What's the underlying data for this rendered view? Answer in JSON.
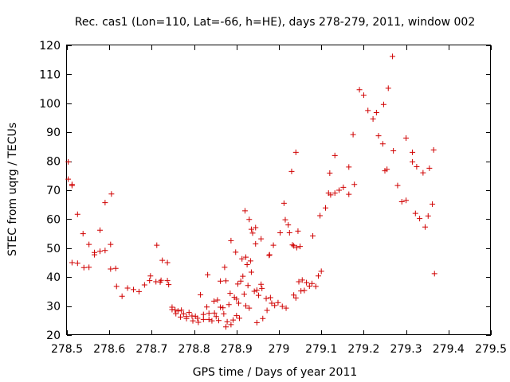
{
  "chart_data": {
    "type": "scatter",
    "title": "Rec. cas1 (Lon=110, Lat=-66, h=HE), days 278-279, 2011, window 002",
    "xlabel": "GPS time / Days of year 2011",
    "ylabel": "STEC from uqrg / TECUs",
    "xlim": [
      278.5,
      279.5
    ],
    "ylim": [
      20,
      120
    ],
    "xticks": [
      278.5,
      278.6,
      278.7,
      278.8,
      278.9,
      279,
      279.1,
      279.2,
      279.3,
      279.4,
      279.5
    ],
    "xtick_labels": [
      "278.5",
      "278.6",
      "278.7",
      "278.8",
      "278.9",
      "279",
      "279.1",
      "279.2",
      "279.3",
      "279.4",
      "279.5"
    ],
    "yticks": [
      20,
      30,
      40,
      50,
      60,
      70,
      80,
      90,
      100,
      110,
      120
    ],
    "ytick_labels": [
      "20",
      "30",
      "40",
      "50",
      "60",
      "70",
      "80",
      "90",
      "100",
      "110",
      "120"
    ],
    "grid": false,
    "marker": "plus",
    "color": "#d00000",
    "points": [
      [
        278.503,
        79.8
      ],
      [
        278.503,
        73.8
      ],
      [
        278.512,
        72.0
      ],
      [
        278.512,
        71.6
      ],
      [
        278.512,
        45.0
      ],
      [
        278.525,
        61.7
      ],
      [
        278.525,
        44.8
      ],
      [
        278.538,
        55.0
      ],
      [
        278.54,
        43.3
      ],
      [
        278.552,
        51.3
      ],
      [
        278.552,
        43.4
      ],
      [
        278.565,
        48.5
      ],
      [
        278.565,
        47.7
      ],
      [
        278.578,
        56.2
      ],
      [
        278.578,
        48.9
      ],
      [
        278.59,
        65.7
      ],
      [
        278.59,
        49.2
      ],
      [
        278.605,
        68.7
      ],
      [
        278.603,
        51.3
      ],
      [
        278.603,
        42.8
      ],
      [
        278.615,
        43.0
      ],
      [
        278.617,
        36.8
      ],
      [
        278.63,
        33.4
      ],
      [
        278.643,
        36.2
      ],
      [
        278.657,
        35.7
      ],
      [
        278.67,
        35.0
      ],
      [
        278.683,
        37.3
      ],
      [
        278.695,
        38.8
      ],
      [
        278.697,
        40.4
      ],
      [
        278.71,
        38.4
      ],
      [
        278.712,
        51.0
      ],
      [
        278.72,
        38.3
      ],
      [
        278.722,
        38.9
      ],
      [
        278.725,
        45.8
      ],
      [
        278.737,
        45.0
      ],
      [
        278.737,
        38.8
      ],
      [
        278.74,
        37.4
      ],
      [
        278.748,
        29.6
      ],
      [
        278.748,
        28.8
      ],
      [
        278.755,
        28.7
      ],
      [
        278.757,
        27.4
      ],
      [
        278.762,
        28.3
      ],
      [
        278.768,
        26.2
      ],
      [
        278.77,
        28.6
      ],
      [
        278.775,
        27.3
      ],
      [
        278.782,
        25.7
      ],
      [
        278.782,
        26.4
      ],
      [
        278.788,
        27.8
      ],
      [
        278.795,
        26.6
      ],
      [
        278.797,
        24.9
      ],
      [
        278.803,
        26.5
      ],
      [
        278.808,
        25.8
      ],
      [
        278.81,
        24.4
      ],
      [
        278.815,
        33.9
      ],
      [
        278.822,
        27.1
      ],
      [
        278.822,
        25.4
      ],
      [
        278.83,
        29.7
      ],
      [
        278.832,
        40.8
      ],
      [
        278.835,
        27.5
      ],
      [
        278.835,
        25.4
      ],
      [
        278.842,
        24.9
      ],
      [
        278.847,
        31.7
      ],
      [
        278.848,
        27.6
      ],
      [
        278.852,
        26.4
      ],
      [
        278.855,
        32.1
      ],
      [
        278.858,
        25.0
      ],
      [
        278.862,
        29.6
      ],
      [
        278.862,
        38.6
      ],
      [
        278.868,
        29.4
      ],
      [
        278.87,
        27.3
      ],
      [
        278.872,
        43.4
      ],
      [
        278.875,
        38.7
      ],
      [
        278.875,
        22.8
      ],
      [
        278.878,
        24.6
      ],
      [
        278.882,
        30.5
      ],
      [
        278.885,
        34.4
      ],
      [
        278.887,
        52.6
      ],
      [
        278.887,
        23.6
      ],
      [
        278.892,
        25.2
      ],
      [
        278.895,
        33.0
      ],
      [
        278.898,
        48.6
      ],
      [
        278.9,
        32.4
      ],
      [
        278.9,
        26.7
      ],
      [
        278.903,
        37.6
      ],
      [
        278.905,
        31.0
      ],
      [
        278.907,
        25.8
      ],
      [
        278.91,
        38.6
      ],
      [
        278.913,
        46.3
      ],
      [
        278.915,
        40.3
      ],
      [
        278.918,
        34.1
      ],
      [
        278.92,
        62.9
      ],
      [
        278.922,
        46.9
      ],
      [
        278.922,
        30.1
      ],
      [
        278.925,
        44.3
      ],
      [
        278.927,
        37.1
      ],
      [
        278.93,
        29.3
      ],
      [
        278.93,
        59.9
      ],
      [
        278.933,
        45.6
      ],
      [
        278.935,
        56.5
      ],
      [
        278.935,
        41.7
      ],
      [
        278.938,
        55.2
      ],
      [
        278.942,
        35.1
      ],
      [
        278.945,
        57.1
      ],
      [
        278.945,
        51.5
      ],
      [
        278.948,
        35.5
      ],
      [
        278.948,
        24.3
      ],
      [
        278.952,
        33.7
      ],
      [
        278.958,
        53.2
      ],
      [
        278.958,
        37.5
      ],
      [
        278.96,
        36.1
      ],
      [
        278.962,
        25.7
      ],
      [
        278.97,
        32.6
      ],
      [
        278.972,
        28.5
      ],
      [
        278.977,
        47.5
      ],
      [
        278.978,
        47.7
      ],
      [
        278.98,
        32.9
      ],
      [
        278.983,
        31.0
      ],
      [
        278.987,
        51.0
      ],
      [
        278.99,
        30.2
      ],
      [
        278.998,
        31.2
      ],
      [
        279.003,
        55.3
      ],
      [
        279.008,
        29.9
      ],
      [
        279.012,
        65.5
      ],
      [
        279.015,
        59.8
      ],
      [
        279.017,
        29.3
      ],
      [
        279.022,
        58.0
      ],
      [
        279.025,
        55.3
      ],
      [
        279.03,
        76.5
      ],
      [
        279.032,
        51.1
      ],
      [
        279.035,
        50.8
      ],
      [
        279.035,
        33.8
      ],
      [
        279.04,
        32.8
      ],
      [
        279.04,
        83.1
      ],
      [
        279.042,
        50.2
      ],
      [
        279.045,
        55.9
      ],
      [
        279.047,
        38.4
      ],
      [
        279.05,
        50.6
      ],
      [
        279.052,
        35.2
      ],
      [
        279.055,
        39.0
      ],
      [
        279.06,
        35.4
      ],
      [
        279.065,
        38.1
      ],
      [
        279.072,
        36.9
      ],
      [
        279.078,
        37.8
      ],
      [
        279.08,
        54.2
      ],
      [
        279.087,
        36.8
      ],
      [
        279.093,
        40.4
      ],
      [
        279.097,
        61.2
      ],
      [
        279.1,
        42.0
      ],
      [
        279.11,
        63.9
      ],
      [
        279.117,
        69.0
      ],
      [
        279.12,
        75.9
      ],
      [
        279.122,
        68.4
      ],
      [
        279.132,
        82.0
      ],
      [
        279.132,
        69.0
      ],
      [
        279.142,
        70.0
      ],
      [
        279.152,
        71.0
      ],
      [
        279.165,
        78.0
      ],
      [
        279.165,
        68.6
      ],
      [
        279.175,
        89.2
      ],
      [
        279.178,
        72.0
      ],
      [
        279.19,
        104.7
      ],
      [
        279.2,
        102.8
      ],
      [
        279.21,
        97.5
      ],
      [
        279.222,
        94.6
      ],
      [
        279.23,
        96.8
      ],
      [
        279.235,
        88.8
      ],
      [
        279.245,
        86.0
      ],
      [
        279.247,
        99.6
      ],
      [
        279.25,
        76.7
      ],
      [
        279.255,
        77.2
      ],
      [
        279.258,
        105.2
      ],
      [
        279.268,
        116.2
      ],
      [
        279.27,
        83.6
      ],
      [
        279.28,
        71.6
      ],
      [
        279.29,
        66.0
      ],
      [
        279.3,
        66.5
      ],
      [
        279.3,
        88.0
      ],
      [
        279.315,
        83.1
      ],
      [
        279.315,
        79.8
      ],
      [
        279.322,
        62.0
      ],
      [
        279.325,
        78.1
      ],
      [
        279.332,
        60.2
      ],
      [
        279.34,
        76.0
      ],
      [
        279.345,
        57.3
      ],
      [
        279.352,
        61.1
      ],
      [
        279.355,
        77.6
      ],
      [
        279.362,
        65.2
      ],
      [
        279.365,
        83.9
      ],
      [
        279.367,
        41.2
      ]
    ]
  }
}
